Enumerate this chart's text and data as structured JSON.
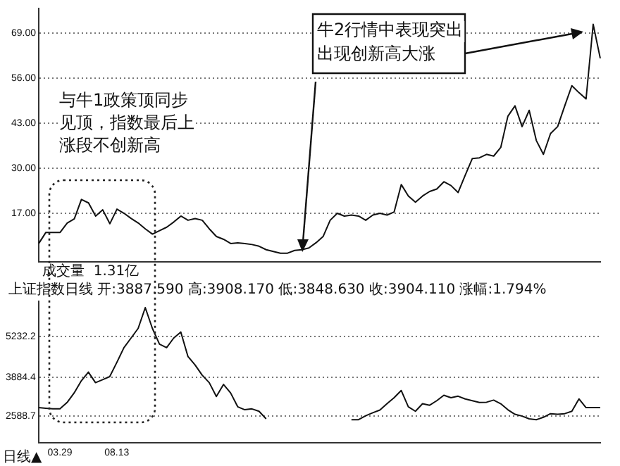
{
  "chart_data": [
    {
      "type": "line",
      "categories": [
        null,
        null,
        null,
        null,
        null,
        null,
        null,
        null,
        null,
        null,
        null,
        null,
        null,
        null,
        null,
        null,
        null,
        null,
        null,
        null,
        null,
        null,
        null,
        null,
        null,
        null,
        null,
        null,
        null,
        null,
        null,
        null,
        null,
        null,
        null,
        null,
        null,
        null,
        null,
        null,
        null,
        null,
        null,
        null,
        null,
        null,
        null,
        null,
        null,
        null,
        null,
        null,
        null,
        null,
        null,
        null,
        null,
        null,
        null,
        null,
        null,
        null,
        null,
        null,
        null,
        null,
        null,
        null,
        null,
        null,
        null,
        null,
        null,
        null,
        null,
        null,
        null,
        null,
        null,
        null
      ],
      "series": [
        {
          "color": "#111111",
          "values": [
            8.3,
            11.5,
            11.5,
            11.5,
            14.2,
            15.4,
            21,
            20,
            16.2,
            18,
            14,
            18.2,
            17,
            15.5,
            14.2,
            12.5,
            11,
            12,
            13,
            14.5,
            16.2,
            15,
            15.5,
            15,
            12.5,
            10.3,
            9.5,
            8.3,
            8.5,
            8.3,
            8,
            7.5,
            6.5,
            6,
            5.5,
            5.5,
            6.3,
            6.5,
            7,
            8.5,
            10.3,
            15,
            17,
            16.2,
            16.5,
            16.2,
            15,
            16.5,
            17,
            16.5,
            17.4,
            25.3,
            22,
            20.2,
            22,
            23.3,
            24,
            26.1,
            25,
            23,
            28,
            32.8,
            33,
            34,
            33.5,
            36,
            45,
            48,
            42,
            46.7,
            38,
            34,
            40,
            42,
            48,
            53.8,
            51.8,
            50,
            71.5,
            61.7
          ]
        }
      ],
      "ylim": [
        3,
        76
      ],
      "yticks": [
        {
          "value": 17,
          "label": "17.00"
        },
        {
          "value": 30,
          "label": "30.00"
        },
        {
          "value": 43,
          "label": "43.00"
        },
        {
          "value": 56,
          "label": "56.00"
        },
        {
          "value": 69,
          "label": "69.00"
        }
      ],
      "grid": "y",
      "legend": false,
      "marker": "none",
      "line_style": "solid",
      "tick_labels": "y",
      "annotations": [
        "与牛1政策顶同步见顶，指数最后上涨段不创新高",
        "牛2行情中表现突出出现创新高大涨",
        "成交量  1.31亿"
      ]
    },
    {
      "type": "line",
      "categories": [
        null,
        null,
        null,
        "03.29",
        null,
        null,
        null,
        null,
        null,
        null,
        null,
        "08.13",
        null,
        null,
        null,
        null,
        null,
        null,
        null,
        null,
        null,
        null,
        null,
        null,
        null,
        null,
        null,
        null,
        null,
        null,
        null,
        null,
        null,
        null,
        null,
        null,
        null,
        null,
        null,
        null,
        null,
        null,
        null,
        null,
        null,
        null,
        null,
        null,
        null,
        null,
        null,
        null,
        null,
        null,
        null,
        null,
        null,
        null,
        null,
        null,
        null,
        null,
        null,
        null,
        null,
        null,
        null,
        null,
        null,
        null,
        null,
        null,
        null,
        null,
        null,
        null,
        null,
        null,
        null,
        null
      ],
      "series": [
        {
          "color": "#111111",
          "values": [
            2870,
            2850,
            2830,
            2830,
            3040,
            3360,
            3760,
            4050,
            3700,
            3800,
            3900,
            4370,
            4860,
            5180,
            5500,
            6190,
            5500,
            4980,
            4860,
            5180,
            5380,
            4570,
            4290,
            3950,
            3700,
            3240,
            3640,
            3360,
            2900,
            2800,
            2830,
            2750,
            2500,
            null,
            null,
            null,
            null,
            null,
            null,
            null,
            null,
            null,
            null,
            null,
            2470,
            2470,
            2600,
            2700,
            2790,
            3000,
            3200,
            3440,
            2900,
            2750,
            3000,
            2950,
            3100,
            3280,
            3200,
            3250,
            3160,
            3100,
            3040,
            3050,
            3120,
            3000,
            2800,
            2650,
            2590,
            2500,
            2470,
            2550,
            2670,
            2650,
            2670,
            2750,
            3160,
            2870,
            2870,
            2870
          ]
        }
      ],
      "ylim": [
        1700,
        6400
      ],
      "yticks": [
        2588.7,
        3884.4,
        5232.2
      ],
      "grid": "y",
      "legend": false,
      "marker": "none",
      "line_style": "solid",
      "annotations": [
        "上证指数日线 开:3887.590 高:3908.170 低:3848.630 收:3904.110 涨幅:1.794%",
        "日线▲"
      ]
    }
  ]
}
